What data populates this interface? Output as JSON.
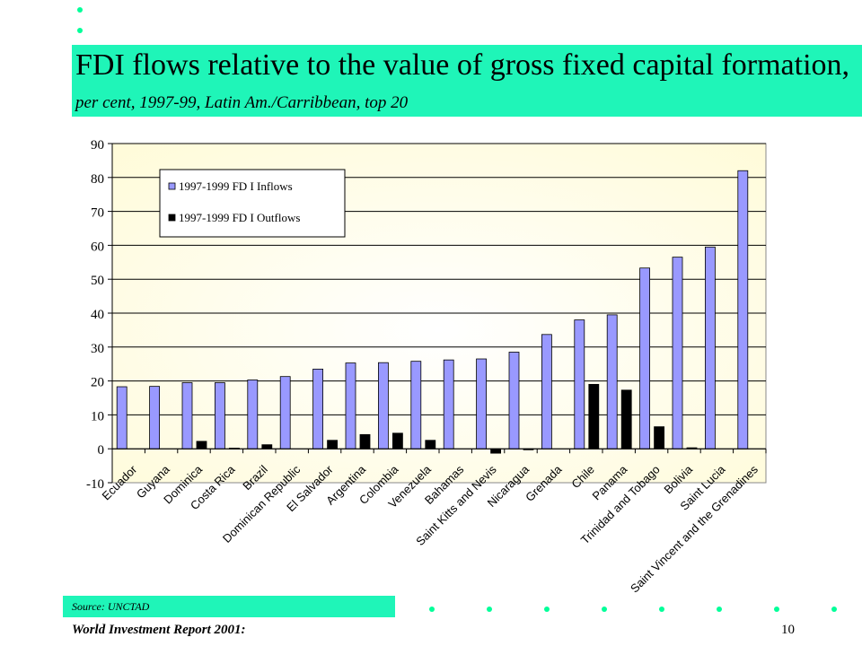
{
  "slide": {
    "title": "FDI flows relative to the value of gross fixed capital formation,",
    "subtitle": "per cent, 1997-99, Latin Am./Carribbean, top 20",
    "source": "Source: UNCTAD",
    "footer": "World Investment Report 2001:",
    "page_number": "10",
    "accent_color": "#1ff5b8",
    "dot_color": "#00ff99"
  },
  "chart_data": {
    "type": "bar",
    "title": "",
    "xlabel": "",
    "ylabel": "",
    "ylim": [
      -10,
      90
    ],
    "yticks": [
      -10,
      0,
      10,
      20,
      30,
      40,
      50,
      60,
      70,
      80,
      90
    ],
    "grid": true,
    "legend_position": "top-left",
    "categories": [
      "Ecuador",
      "Guyana",
      "Dominica",
      "Costa Rica",
      "Brazil",
      "Dominican Republic",
      "El Salvador",
      "Argentina",
      "Colombia",
      "Venezuela",
      "Bahamas",
      "Saint Kitts and Nevis",
      "Nicaragua",
      "Grenada",
      "Chile",
      "Panama",
      "Trinidad and Tobago",
      "Bolivia",
      "Saint Lucia",
      "Saint Vincent and the Grenadines"
    ],
    "series": [
      {
        "name": "1997-1999 FD I Inflows",
        "color": "#9999ff",
        "values": [
          18.3,
          18.4,
          19.5,
          19.5,
          20.3,
          21.3,
          23.5,
          25.3,
          25.4,
          25.8,
          26.2,
          26.5,
          28.5,
          33.7,
          38.0,
          39.5,
          53.3,
          56.5,
          59.5,
          82.0
        ]
      },
      {
        "name": "1997-1999 FD I Outflows",
        "color": "#000000",
        "values": [
          0,
          0,
          2.2,
          0.2,
          1.2,
          0,
          2.5,
          4.2,
          4.6,
          2.5,
          0,
          -1.3,
          -0.3,
          0,
          19.0,
          17.3,
          6.5,
          0.3,
          0,
          0
        ]
      }
    ],
    "plot_background": "#fffbd8"
  }
}
